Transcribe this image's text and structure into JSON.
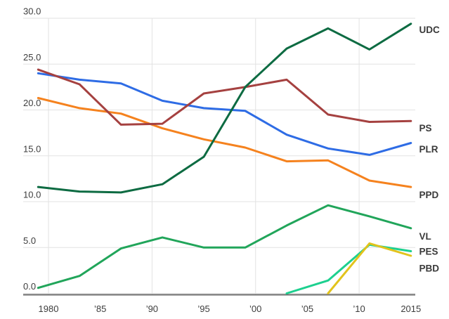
{
  "chart_data": {
    "type": "line",
    "title": "",
    "xlabel": "",
    "ylabel": "",
    "x": [
      1979,
      1983,
      1987,
      1991,
      1995,
      1999,
      2003,
      2007,
      2011,
      2015
    ],
    "series": [
      {
        "name": "PPD",
        "color": "#f5821e",
        "values": [
          21.3,
          20.2,
          19.6,
          18.0,
          16.8,
          15.9,
          14.4,
          14.5,
          12.3,
          11.6
        ]
      },
      {
        "name": "PLR",
        "color": "#2e6ce5",
        "values": [
          24.0,
          23.3,
          22.9,
          21.0,
          20.2,
          19.9,
          17.3,
          15.8,
          15.1,
          16.4
        ]
      },
      {
        "name": "PS",
        "color": "#a54140",
        "values": [
          24.4,
          22.8,
          18.4,
          18.5,
          21.8,
          22.5,
          23.3,
          19.5,
          18.7,
          18.8
        ]
      },
      {
        "name": "UDC",
        "color": "#0d6b42",
        "values": [
          11.6,
          11.1,
          11.0,
          11.9,
          14.9,
          22.5,
          26.7,
          28.9,
          26.6,
          29.4
        ]
      },
      {
        "name": "VL",
        "color": "#21a55a",
        "values": [
          0.6,
          1.9,
          4.9,
          6.1,
          5.0,
          5.0,
          7.4,
          9.6,
          8.4,
          7.1
        ]
      },
      {
        "name": "PES",
        "color": "#1dd08f",
        "values": [
          null,
          null,
          null,
          null,
          null,
          null,
          0.0,
          1.4,
          5.3,
          4.6
        ]
      },
      {
        "name": "PBD",
        "color": "#e2c31c",
        "values": [
          null,
          null,
          null,
          null,
          null,
          null,
          null,
          0.0,
          5.45,
          4.1
        ]
      }
    ],
    "y_ticks": [
      {
        "value": 0,
        "label": "0.0"
      },
      {
        "value": 5,
        "label": "5.0"
      },
      {
        "value": 10,
        "label": "10.0"
      },
      {
        "value": 15,
        "label": "15.0"
      },
      {
        "value": 20,
        "label": "20.0"
      },
      {
        "value": 25,
        "label": "25.0"
      },
      {
        "value": 30,
        "label": "30.0"
      }
    ],
    "x_ticks": [
      {
        "year": 1980,
        "label": "1980"
      },
      {
        "year": 1985,
        "label": "’85"
      },
      {
        "year": 1990,
        "label": "’90"
      },
      {
        "year": 1995,
        "label": "’95"
      },
      {
        "year": 2000,
        "label": "’00"
      },
      {
        "year": 2005,
        "label": "’05"
      },
      {
        "year": 2010,
        "label": "’10"
      },
      {
        "year": 2015,
        "label": "2015"
      }
    ],
    "vertical_gridline_years": [
      1980,
      1990,
      2000,
      2010
    ],
    "ylim": [
      0,
      30
    ],
    "xlim": [
      1979,
      2015
    ],
    "grid": true,
    "legend_position": "labels-right-of-line-ends",
    "colors": {
      "background": "#ffffff",
      "gridline": "#e2e2e2",
      "axis_line": "#6a6a6a",
      "tick_text": "#3d3d3d",
      "series_label_text": "#3a3a3a"
    }
  }
}
